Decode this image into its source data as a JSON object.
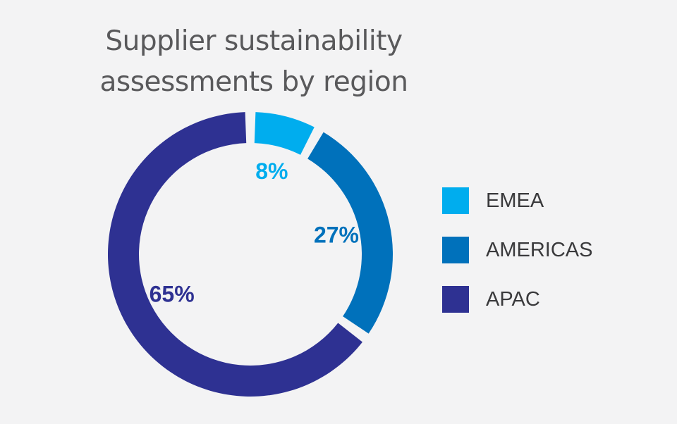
{
  "chart_data": {
    "type": "pie",
    "donut": true,
    "title_lines": [
      "Supplier sustainability",
      "assessments by region"
    ],
    "categories": [
      "EMEA",
      "AMERICAS",
      "APAC"
    ],
    "values": [
      8,
      27,
      65
    ],
    "labels": [
      "8%",
      "27%",
      "65%"
    ],
    "colors": [
      "#00adee",
      "#0071bb",
      "#2e3192"
    ],
    "legend_position": "right"
  }
}
